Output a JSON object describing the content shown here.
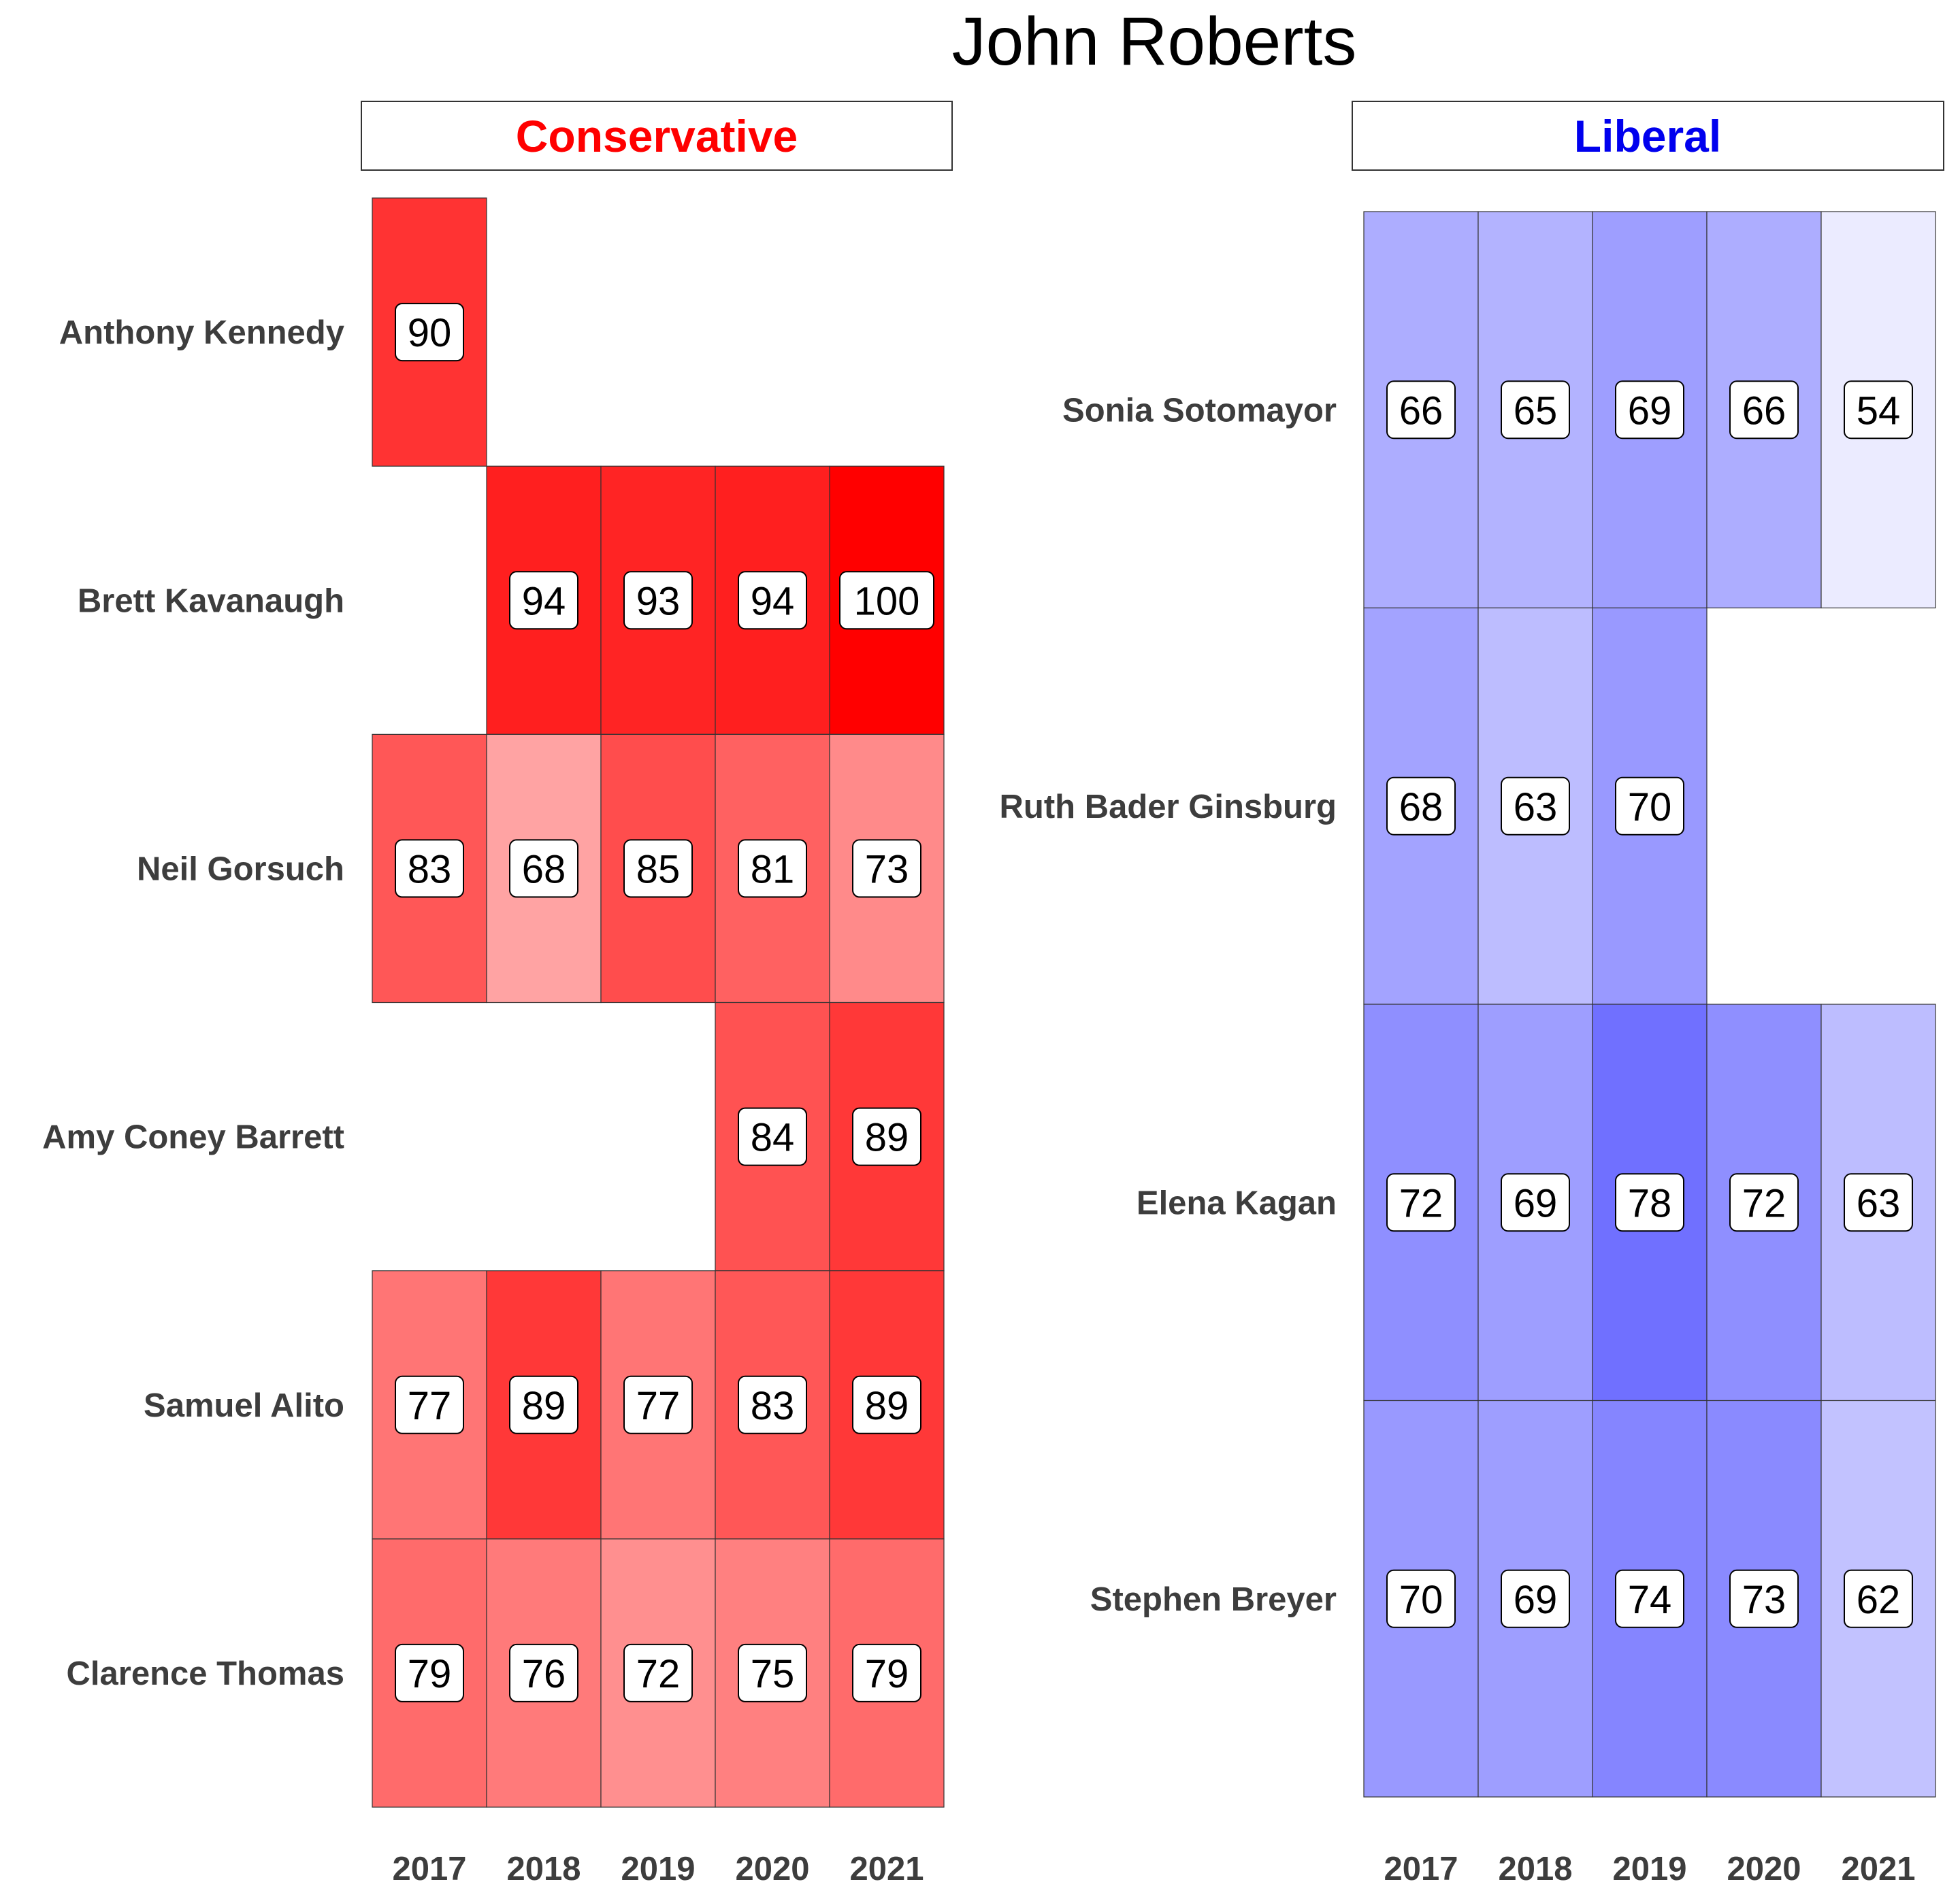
{
  "chart_data": {
    "type": "heatmap",
    "title": "John Roberts",
    "panels": [
      {
        "strip_label": "Conservative",
        "strip_color": "#ff0000",
        "base_color": "#ff0000",
        "columns": [
          "2017",
          "2018",
          "2019",
          "2020",
          "2021"
        ],
        "rows": [
          {
            "name": "Anthony Kennedy",
            "values": [
              90,
              null,
              null,
              null,
              null
            ]
          },
          {
            "name": "Brett Kavanaugh",
            "values": [
              null,
              94,
              93,
              94,
              100
            ]
          },
          {
            "name": "Neil Gorsuch",
            "values": [
              83,
              68,
              85,
              81,
              73
            ]
          },
          {
            "name": "Amy Coney Barrett",
            "values": [
              null,
              null,
              null,
              84,
              89
            ]
          },
          {
            "name": "Samuel Alito",
            "values": [
              77,
              89,
              77,
              83,
              89
            ]
          },
          {
            "name": "Clarence Thomas",
            "values": [
              79,
              76,
              72,
              75,
              79
            ]
          }
        ]
      },
      {
        "strip_label": "Liberal",
        "strip_color": "#0000ee",
        "base_color": "#0000ff",
        "columns": [
          "2017",
          "2018",
          "2019",
          "2020",
          "2021"
        ],
        "rows": [
          {
            "name": "Sonia Sotomayor",
            "values": [
              66,
              65,
              69,
              66,
              54
            ]
          },
          {
            "name": "Ruth Bader Ginsburg",
            "values": [
              68,
              63,
              70,
              null,
              null
            ]
          },
          {
            "name": "Elena Kagan",
            "values": [
              72,
              69,
              78,
              72,
              63
            ]
          },
          {
            "name": "Stephen Breyer",
            "values": [
              70,
              69,
              74,
              73,
              62
            ]
          }
        ]
      }
    ]
  }
}
